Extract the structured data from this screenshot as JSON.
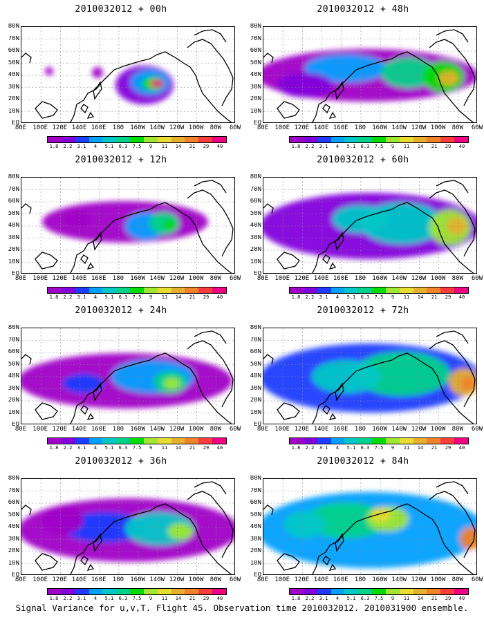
{
  "panels": [
    {
      "title": "2010032012 + 00h"
    },
    {
      "title": "2010032012 + 48h"
    },
    {
      "title": "2010032012 + 12h"
    },
    {
      "title": "2010032012 + 60h"
    },
    {
      "title": "2010032012 + 24h"
    },
    {
      "title": "2010032012 + 72h"
    },
    {
      "title": "2010032012 + 36h"
    },
    {
      "title": "2010032012 + 84h"
    }
  ],
  "lat_labels": [
    "80N",
    "70N",
    "60N",
    "50N",
    "40N",
    "30N",
    "20N",
    "10N",
    "EQ"
  ],
  "lon_labels": [
    "80E",
    "100E",
    "120E",
    "140E",
    "160E",
    "180",
    "160W",
    "140W",
    "120W",
    "100W",
    "80W",
    "60W"
  ],
  "colorbar": {
    "labels": [
      "1.8",
      "2.2",
      "3.1",
      "4",
      "5.1",
      "6.3",
      "7.5",
      "9",
      "11",
      "14",
      "21",
      "29",
      "40"
    ],
    "colors": [
      "#a000c8",
      "#8200dc",
      "#1e3cff",
      "#00a0ff",
      "#00c8c8",
      "#00d28c",
      "#00dc00",
      "#a0e632",
      "#e6dc32",
      "#e6af2d",
      "#f08228",
      "#fa3c3c",
      "#f00082"
    ]
  },
  "caption": "Signal Variance for u,v,T. Flight 45. Observation time 2010032012. 2010031900 ensemble."
}
